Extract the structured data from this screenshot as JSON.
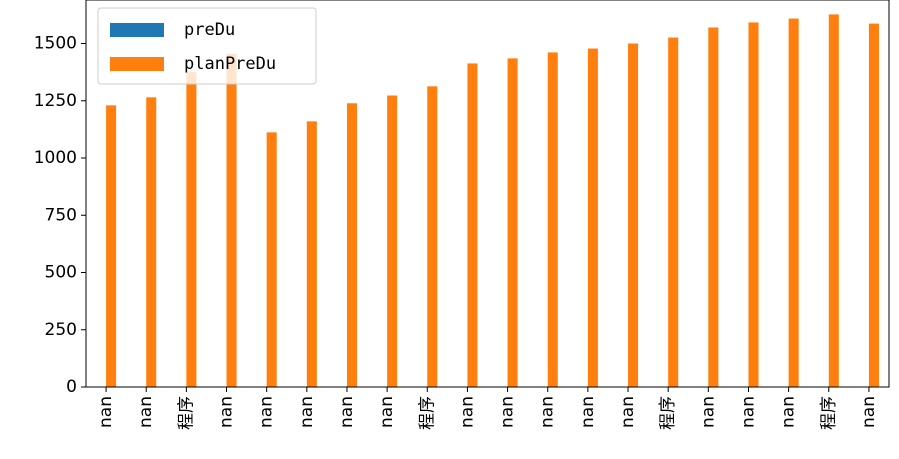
{
  "chart_data": {
    "type": "bar",
    "categories": [
      "nan",
      "nan",
      "程序",
      "nan",
      "nan",
      "nan",
      "nan",
      "nan",
      "程序",
      "nan",
      "nan",
      "nan",
      "nan",
      "nan",
      "程序",
      "nan",
      "nan",
      "nan",
      "程序",
      "nan"
    ],
    "series": [
      {
        "name": "preDu",
        "color": "#1f77b4",
        "values": [
          null,
          null,
          null,
          null,
          null,
          null,
          null,
          null,
          null,
          null,
          null,
          null,
          null,
          null,
          null,
          null,
          null,
          null,
          null,
          null
        ]
      },
      {
        "name": "planPreDu",
        "color": "#ff7f0e",
        "values": [
          1230,
          1265,
          1375,
          1455,
          1112,
          1160,
          1239,
          1273,
          1313,
          1413,
          1435,
          1461,
          1478,
          1500,
          1526,
          1570,
          1592,
          1609,
          1627,
          1587
        ]
      }
    ],
    "ylim": [
      0,
      1690
    ],
    "yticks": [
      0,
      250,
      500,
      750,
      1000,
      1250,
      1500
    ],
    "legend": "upper left"
  }
}
